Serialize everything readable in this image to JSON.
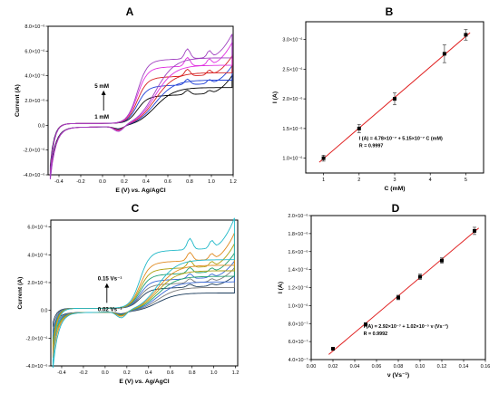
{
  "panels": {
    "A": "A",
    "B": "B",
    "C": "C",
    "D": "D"
  },
  "chart_data": [
    {
      "id": "A",
      "type": "line",
      "title": "",
      "xlabel_pre": "E (V) ",
      "xlabel_italic": "vs.",
      "xlabel_post": " Ag/AgCl",
      "ylabel": "Current (A)",
      "xlim": [
        -0.5,
        1.2
      ],
      "ylim": [
        -4e-06,
        8e-06
      ],
      "xticks": [
        -0.4,
        -0.2,
        0.0,
        0.2,
        0.4,
        0.6,
        0.8,
        1.0,
        1.2
      ],
      "xtick_labels": [
        "-0.4",
        "-0.2",
        "0.0",
        "0.2",
        "0.4",
        "0.6",
        "0.8",
        "1.0",
        "1.2"
      ],
      "yticks": [
        -4e-06,
        -2e-06,
        0,
        2e-06,
        4e-06,
        6e-06,
        8e-06
      ],
      "ytick_labels": [
        "-4.0×10⁻⁶",
        "-2.0×10⁻⁶",
        "0.0",
        "2.0×10⁻⁶",
        "4.0×10⁻⁶",
        "6.0×10⁻⁶",
        "8.0×10⁻⁶"
      ],
      "annotation_top": "5 mM",
      "annotation_bottom": "1 mM",
      "series": [
        {
          "color": "#000000",
          "height": 2.1e-06,
          "peak": 3.5e-07,
          "end": 3.6e-06,
          "start": -3.4e-06,
          "cath": 3.2e-06
        },
        {
          "color": "#1f3fd6",
          "height": 2.9e-06,
          "peak": 4.5e-07,
          "end": 4.4e-06,
          "start": -3.6e-06,
          "cath": 3.8e-06
        },
        {
          "color": "#d62020",
          "height": 3.6e-06,
          "peak": 5.5e-07,
          "end": 5.2e-06,
          "start": -3.8e-06,
          "cath": 4.4e-06
        },
        {
          "color": "#e030e0",
          "height": 4.4e-06,
          "peak": 7e-07,
          "end": 6.3e-06,
          "start": -4e-06,
          "cath": 5e-06
        },
        {
          "color": "#a040c0",
          "height": 5e-06,
          "peak": 8e-07,
          "end": 7e-06,
          "start": -4e-06,
          "cath": 5.6e-06
        }
      ]
    },
    {
      "id": "B",
      "type": "scatter",
      "title": "",
      "xlabel": "C (mM)",
      "ylabel": "I (A)",
      "xlim": [
        0.5,
        5.5
      ],
      "ylim": [
        7.5e-07,
        3.3e-06
      ],
      "xticks": [
        1,
        2,
        3,
        4,
        5
      ],
      "xtick_labels": [
        "1",
        "2",
        "3",
        "4",
        "5"
      ],
      "yticks": [
        1e-06,
        1.5e-06,
        2e-06,
        2.5e-06,
        3e-06
      ],
      "ytick_labels": [
        "1.0×10⁻⁶",
        "1.5×10⁻⁶",
        "2.0×10⁻⁶",
        "2.5×10⁻⁶",
        "3.0×10⁻⁶"
      ],
      "x": [
        1,
        2,
        3,
        4.4,
        5
      ],
      "y": [
        1e-06,
        1.5e-06,
        2e-06,
        2.76e-06,
        3.08e-06
      ],
      "err": [
        5e-08,
        7e-08,
        1e-07,
        1.5e-07,
        9e-08
      ],
      "fit": {
        "slope": 5.15e-07,
        "intercept": 4.78e-07
      },
      "equation": "I (A) = 4.78×10⁻⁷ + 5.15×10⁻⁷ C (mM)",
      "r_text": "R = 0.9997",
      "marker_color": "#000000",
      "line_color": "#e02020"
    },
    {
      "id": "C",
      "type": "line",
      "title": "",
      "xlabel_pre": "E (V) ",
      "xlabel_italic": "vs.",
      "xlabel_post": " Ag/AgCl",
      "ylabel": "Current (A)",
      "xlim": [
        -0.5,
        1.22
      ],
      "ylim": [
        -4e-06,
        6.5e-06
      ],
      "xticks": [
        -0.4,
        -0.2,
        0.0,
        0.2,
        0.4,
        0.6,
        0.8,
        1.0,
        1.2
      ],
      "xtick_labels": [
        "-0.4",
        "-0.2",
        "0.0",
        "0.2",
        "0.4",
        "0.6",
        "0.8",
        "1.0",
        "1.2"
      ],
      "yticks": [
        -4e-06,
        -2e-06,
        0,
        2e-06,
        4e-06,
        6e-06
      ],
      "ytick_labels": [
        "-4.0×10⁻⁶",
        "-2.0×10⁻⁶",
        "0.0",
        "2.0×10⁻⁶",
        "4.0×10⁻⁶",
        "6.0×10⁻⁶"
      ],
      "annotation_top": "0.15 Vs⁻¹",
      "annotation_bottom": "0.02 Vs⁻¹",
      "series": [
        {
          "color": "#1a3a5a",
          "height": 1.3e-06,
          "peak": 2e-07,
          "end": 2e-06,
          "start": -1e-06,
          "cath": 1.4e-06
        },
        {
          "color": "#7a7a7a",
          "height": 1.6e-06,
          "peak": 3e-07,
          "end": 2.6e-06,
          "start": -1.4e-06,
          "cath": 1.8e-06
        },
        {
          "color": "#3a6ad6",
          "height": 1.9e-06,
          "peak": 3.5e-07,
          "end": 3.1e-06,
          "start": -1.8e-06,
          "cath": 2.2e-06
        },
        {
          "color": "#20a070",
          "height": 2.3e-06,
          "peak": 4e-07,
          "end": 3.7e-06,
          "start": -2.2e-06,
          "cath": 2.6e-06
        },
        {
          "color": "#b0a010",
          "height": 2.7e-06,
          "peak": 5e-07,
          "end": 4.4e-06,
          "start": -2.6e-06,
          "cath": 3e-06
        },
        {
          "color": "#e08a20",
          "height": 3.2e-06,
          "peak": 6e-07,
          "end": 5.2e-06,
          "start": -3.1e-06,
          "cath": 3.4e-06
        },
        {
          "color": "#20b8c8",
          "height": 4e-06,
          "peak": 8e-07,
          "end": 6.3e-06,
          "start": -3.8e-06,
          "cath": 3.8e-06
        }
      ]
    },
    {
      "id": "D",
      "type": "scatter",
      "title": "",
      "xlabel": "ν (Vs⁻¹)",
      "ylabel": "I (A)",
      "xlim": [
        0.0,
        0.16
      ],
      "ylim": [
        4e-07,
        2e-06
      ],
      "xticks": [
        0.0,
        0.02,
        0.04,
        0.06,
        0.08,
        0.1,
        0.12,
        0.14,
        0.16
      ],
      "xtick_labels": [
        "0.00",
        "0.02",
        "0.04",
        "0.06",
        "0.08",
        "0.10",
        "0.12",
        "0.14",
        "0.16"
      ],
      "yticks": [
        4e-07,
        6e-07,
        8e-07,
        1e-06,
        1.2e-06,
        1.4e-06,
        1.6e-06,
        1.8e-06,
        2e-06
      ],
      "ytick_labels": [
        "4.0×10⁻⁷",
        "6.0×10⁻⁷",
        "8.0×10⁻⁷",
        "1.0×10⁻⁶",
        "1.2×10⁻⁶",
        "1.4×10⁻⁶",
        "1.6×10⁻⁶",
        "1.8×10⁻⁶",
        "2.0×10⁻⁶"
      ],
      "x": [
        0.02,
        0.05,
        0.08,
        0.1,
        0.12,
        0.15
      ],
      "y": [
        5.2e-07,
        7.9e-07,
        1.09e-06,
        1.32e-06,
        1.5e-06,
        1.83e-06
      ],
      "err": [
        1.5e-08,
        2e-08,
        2.5e-08,
        3e-08,
        3e-08,
        4e-08
      ],
      "fit": {
        "slope": 1.02e-05,
        "intercept": 2.92e-07
      },
      "equation": "I (A) = 2.92×10⁻⁷ + 1.02×10⁻⁵ ν (Vs⁻¹)",
      "r_text": "R = 0.9992",
      "marker_color": "#000000",
      "line_color": "#e02020"
    }
  ]
}
